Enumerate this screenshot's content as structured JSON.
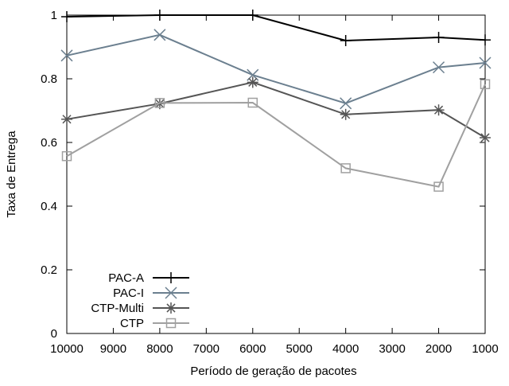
{
  "chart_data": {
    "type": "line",
    "title": "",
    "xlabel": "Período de geração de pacotes",
    "ylabel": "Taxa de Entrega",
    "xlim": [
      10000,
      1000
    ],
    "ylim": [
      0,
      1
    ],
    "x_reversed": true,
    "xticks": [
      "10000",
      "9000",
      "8000",
      "7000",
      "6000",
      "5000",
      "4000",
      "3000",
      "2000",
      "1000"
    ],
    "yticks": [
      "0",
      "0.2",
      "0.4",
      "0.6",
      "0.8",
      "1"
    ],
    "grid": false,
    "legend_position": "bottom-left",
    "x": [
      10000,
      8000,
      6000,
      4000,
      2000,
      1000
    ],
    "series": [
      {
        "name": "PAC-A",
        "color": "#000000",
        "marker": "plus",
        "values": [
          0.995,
          1.0,
          1.0,
          0.92,
          0.93,
          0.922
        ]
      },
      {
        "name": "PAC-I",
        "color": "#6b7f8f",
        "marker": "cross",
        "values": [
          0.873,
          0.938,
          0.812,
          0.723,
          0.836,
          0.85
        ]
      },
      {
        "name": "CTP-Multi",
        "color": "#555555",
        "marker": "asterisk",
        "values": [
          0.673,
          0.722,
          0.789,
          0.688,
          0.702,
          0.615
        ]
      },
      {
        "name": "CTP",
        "color": "#a0a0a0",
        "marker": "square",
        "values": [
          0.557,
          0.724,
          0.725,
          0.519,
          0.461,
          0.783
        ]
      }
    ]
  }
}
